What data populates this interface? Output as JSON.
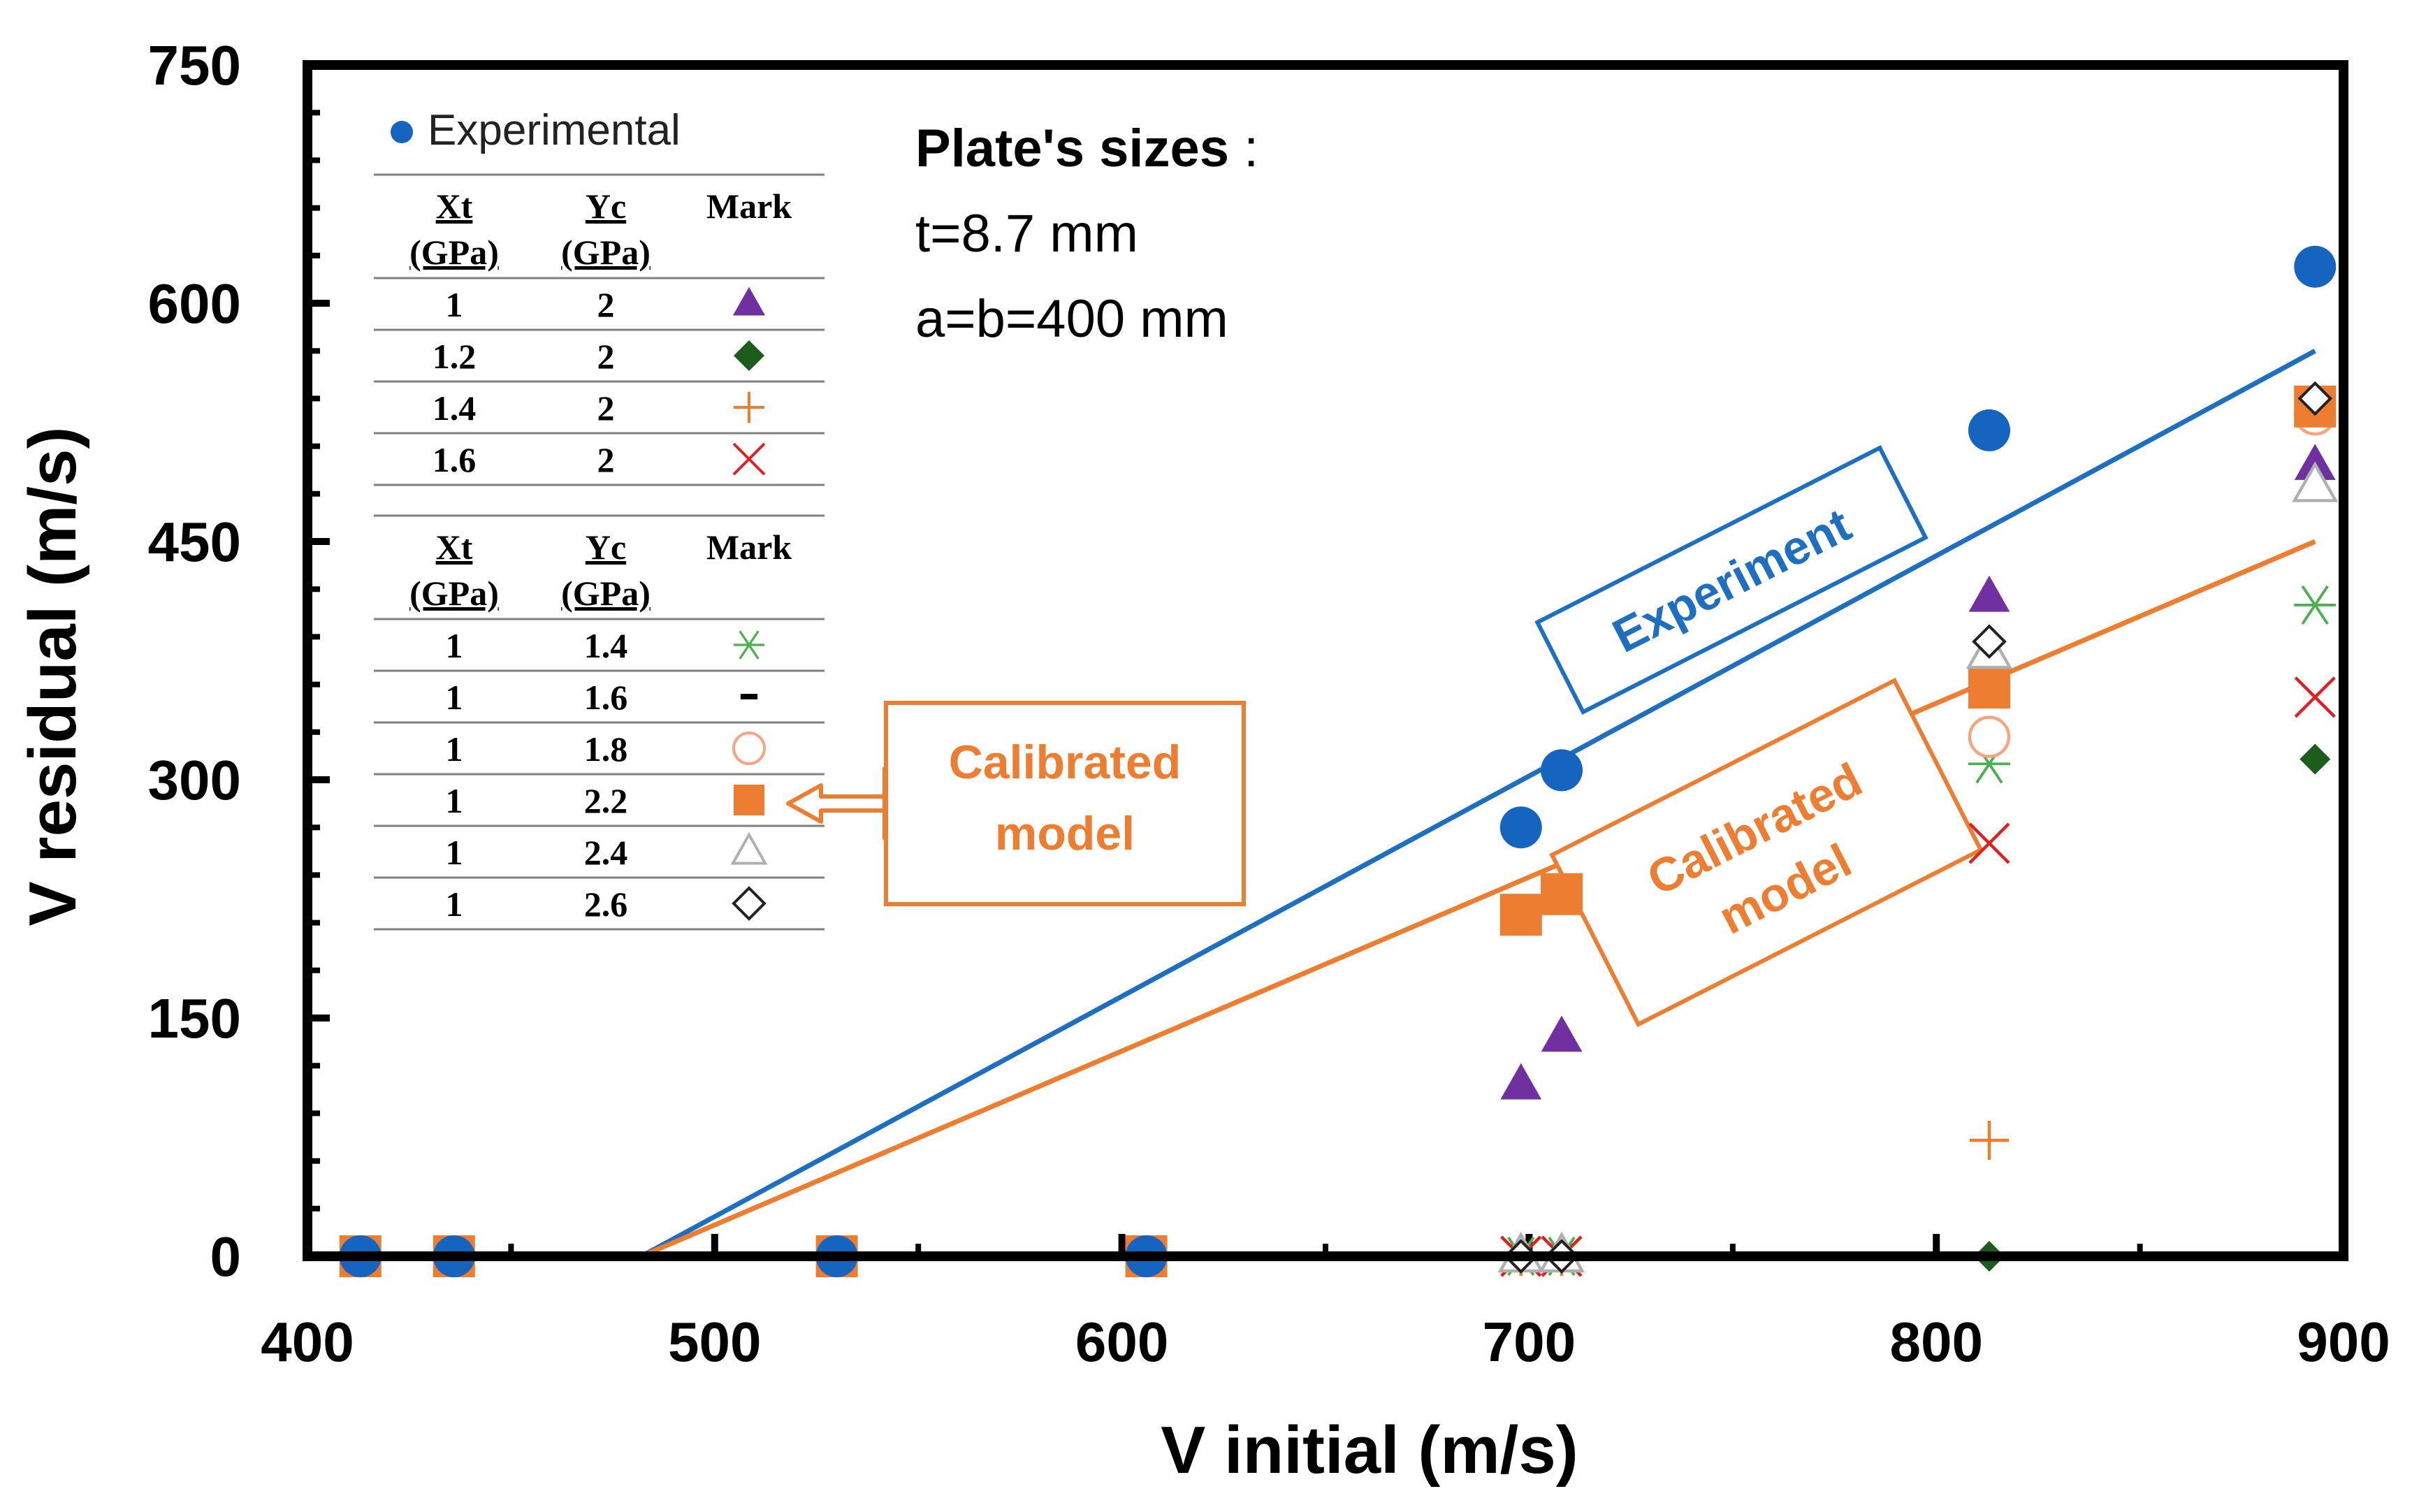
{
  "chart_data": {
    "type": "scatter",
    "title": "",
    "xlabel": "V initial (m/s)",
    "ylabel": "V residual (m/s)",
    "xlim": [
      400,
      900
    ],
    "ylim": [
      0,
      750
    ],
    "x_ticks": [
      "400",
      "500",
      "600",
      "700",
      "800",
      "900"
    ],
    "y_ticks": [
      "0",
      "150",
      "300",
      "450",
      "600",
      "750"
    ],
    "grid": false,
    "legend_entry": "Experimental",
    "table_header": {
      "xt": "Xt",
      "yc": "Yc",
      "unit": "(GPa)",
      "mark": "Mark"
    },
    "table1": [
      {
        "xt": "1",
        "yc": "2",
        "series": "xt1_yc2"
      },
      {
        "xt": "1.2",
        "yc": "2",
        "series": "xt12_yc2"
      },
      {
        "xt": "1.4",
        "yc": "2",
        "series": "xt14_yc2"
      },
      {
        "xt": "1.6",
        "yc": "2",
        "series": "xt16_yc2"
      }
    ],
    "table2": [
      {
        "xt": "1",
        "yc": "1.4",
        "series": "xt1_yc14"
      },
      {
        "xt": "1",
        "yc": "1.6",
        "series": "xt1_yc16"
      },
      {
        "xt": "1",
        "yc": "1.8",
        "series": "xt1_yc18"
      },
      {
        "xt": "1",
        "yc": "2.2",
        "series": "xt1_yc22"
      },
      {
        "xt": "1",
        "yc": "2.4",
        "series": "xt1_yc24"
      },
      {
        "xt": "1",
        "yc": "2.6",
        "series": "xt1_yc26"
      }
    ],
    "series": [
      {
        "id": "xt1_yc2",
        "name": "Xt 1 / Yc 2",
        "marker": "triangle",
        "color": "#7030a0",
        "filled": true,
        "points": [
          [
            698,
            0
          ],
          [
            708,
            0
          ],
          [
            698,
            108
          ],
          [
            708,
            138
          ],
          [
            813,
            415
          ],
          [
            893,
            498
          ]
        ]
      },
      {
        "id": "xt12_yc2",
        "name": "Xt 1.2 / Yc 2",
        "marker": "diamond",
        "color": "#1e5c1e",
        "filled": true,
        "points": [
          [
            698,
            0
          ],
          [
            708,
            0
          ],
          [
            813,
            0
          ],
          [
            893,
            313
          ]
        ]
      },
      {
        "id": "xt14_yc2",
        "name": "Xt 1.4 / Yc 2",
        "marker": "plus",
        "color": "#ed7d31",
        "filled": false,
        "points": [
          [
            698,
            0
          ],
          [
            708,
            0
          ],
          [
            813,
            73
          ]
        ]
      },
      {
        "id": "xt16_yc2",
        "name": "Xt 1.6 / Yc 2",
        "marker": "x",
        "color": "#e02020",
        "filled": false,
        "points": [
          [
            698,
            0
          ],
          [
            708,
            0
          ],
          [
            813,
            260
          ],
          [
            893,
            352
          ]
        ]
      },
      {
        "id": "xt1_yc14",
        "name": "Xt 1 / Yc 1.4",
        "marker": "asterisk",
        "color": "#4caf50",
        "filled": false,
        "points": [
          [
            698,
            0
          ],
          [
            708,
            0
          ],
          [
            813,
            310
          ],
          [
            893,
            410
          ]
        ]
      },
      {
        "id": "xt1_yc16",
        "name": "Xt 1 / Yc 1.6",
        "marker": "dash",
        "color": "#000000",
        "filled": true,
        "points": [
          [
            813,
            320
          ],
          [
            893,
            525
          ]
        ]
      },
      {
        "id": "xt1_yc18",
        "name": "Xt 1 / Yc 1.8",
        "marker": "circle",
        "color": "#f4a582",
        "filled": false,
        "points": [
          [
            813,
            327
          ],
          [
            893,
            530
          ]
        ]
      },
      {
        "id": "xt1_yc22",
        "name": "Xt 1 / Yc 2.2",
        "marker": "square",
        "color": "#ed7d31",
        "filled": true,
        "points": [
          [
            413,
            0
          ],
          [
            436,
            0
          ],
          [
            530,
            0
          ],
          [
            606,
            0
          ],
          [
            698,
            215
          ],
          [
            708,
            228
          ],
          [
            813,
            358
          ],
          [
            893,
            535
          ]
        ]
      },
      {
        "id": "xt1_yc24",
        "name": "Xt 1 / Yc 2.4",
        "marker": "triangle",
        "color": "#b0b0b0",
        "filled": false,
        "points": [
          [
            698,
            0
          ],
          [
            708,
            0
          ],
          [
            813,
            380
          ],
          [
            893,
            485
          ]
        ]
      },
      {
        "id": "xt1_yc26",
        "name": "Xt 1 / Yc 2.6",
        "marker": "diamond",
        "color": "#222222",
        "filled": false,
        "points": [
          [
            698,
            0
          ],
          [
            708,
            0
          ],
          [
            813,
            387
          ],
          [
            893,
            540
          ]
        ]
      },
      {
        "id": "experimental",
        "name": "Experimental",
        "marker": "circle",
        "color": "#1565c0",
        "filled": true,
        "points": [
          [
            413,
            0
          ],
          [
            436,
            0
          ],
          [
            530,
            0
          ],
          [
            606,
            0
          ],
          [
            698,
            270
          ],
          [
            708,
            306
          ],
          [
            813,
            520
          ],
          [
            893,
            623
          ]
        ]
      }
    ],
    "fit_lines": [
      {
        "name": "Experiment",
        "color": "#1f6fc0",
        "points": [
          [
            482,
            0
          ],
          [
            893,
            570
          ]
        ]
      },
      {
        "name": "Calibrated model",
        "color": "#ed7d31",
        "points": [
          [
            482,
            0
          ],
          [
            893,
            450
          ]
        ]
      }
    ],
    "annotations": {
      "plate_title": "Plate's sizes",
      "plate_colon": " :",
      "plate_t": "t=8.7 mm",
      "plate_ab": "a=b=400 mm",
      "experiment_box": "Experiment",
      "calib_box_line1": "Calibrated",
      "calib_box_line2": "model",
      "callout_line1": "Calibrated",
      "callout_line2": "model"
    }
  }
}
